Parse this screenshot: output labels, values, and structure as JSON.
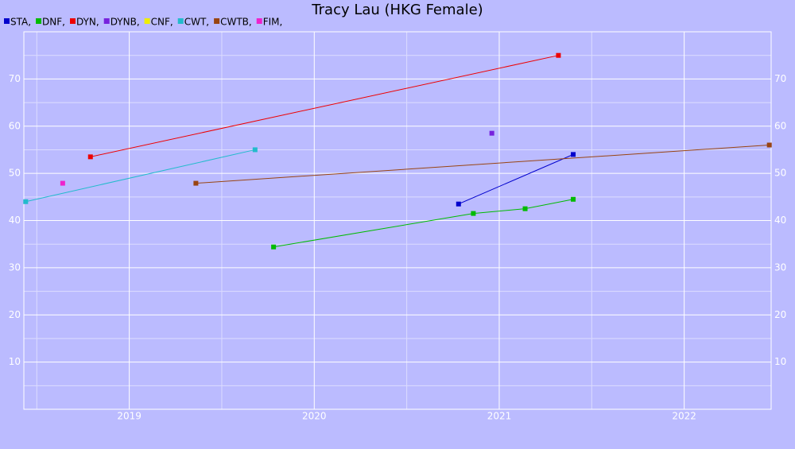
{
  "chart_data": {
    "type": "line",
    "title": "Tracy Lau (HKG Female)",
    "series": [
      {
        "name": "STA,",
        "color": "#0000cc",
        "x": [
          2020.78,
          2021.4
        ],
        "values": [
          43.5,
          54.0
        ]
      },
      {
        "name": "DNF,",
        "color": "#00bb00",
        "x": [
          2019.78,
          2020.86,
          2021.14,
          2021.4
        ],
        "values": [
          34.4,
          41.5,
          42.5,
          44.5
        ]
      },
      {
        "name": "DYN,",
        "color": "#ee0000",
        "x": [
          2018.79,
          2021.32
        ],
        "values": [
          53.5,
          75.0
        ]
      },
      {
        "name": "DYNB,",
        "color": "#7722dd",
        "x": [
          2020.96
        ],
        "values": [
          58.5
        ]
      },
      {
        "name": "CNF,",
        "color": "#eeee00",
        "x": [],
        "values": []
      },
      {
        "name": "CWT,",
        "color": "#22bbcc",
        "x": [
          2018.44,
          2019.68
        ],
        "values": [
          44.0,
          55.0
        ]
      },
      {
        "name": "CWTB,",
        "color": "#994411",
        "x": [
          2019.36,
          2022.46
        ],
        "values": [
          47.9,
          56.0
        ]
      },
      {
        "name": "FIM,",
        "color": "#ee22cc",
        "x": [
          2018.64
        ],
        "values": [
          47.9
        ]
      }
    ],
    "xlim": [
      2018.43,
      2022.47
    ],
    "xticks": [
      2019,
      2020,
      2021,
      2022
    ],
    "minor_xticks": [
      2018.5,
      2019.5,
      2020.5,
      2021.5
    ],
    "ylim": [
      0,
      80
    ],
    "yticks": [
      10,
      20,
      30,
      40,
      50,
      60,
      70
    ],
    "minor_yticks": [
      5,
      15,
      25,
      35,
      45,
      55,
      65,
      75
    ],
    "grid": true,
    "background": "#bbbbff",
    "legend": "top-left"
  }
}
